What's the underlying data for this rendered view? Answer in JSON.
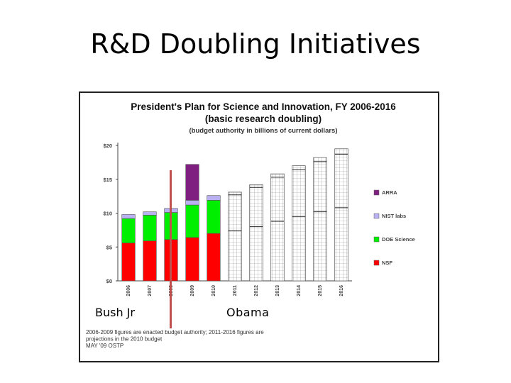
{
  "slide": {
    "title": "R&D Doubling Initiatives",
    "label_left": "Bush Jr",
    "label_right": "Obama"
  },
  "chart_data": {
    "type": "bar",
    "stacked": true,
    "title": "President's Plan for Science and Innovation, FY 2006-2016",
    "subtitle": "(basic research doubling)",
    "subtitle2": "(budget authority in billions of current dollars)",
    "xlabel": "",
    "ylabel": "",
    "categories": [
      "2006",
      "2007",
      "2008",
      "2009",
      "2010",
      "2011",
      "2012",
      "2013",
      "2014",
      "2015",
      "2016"
    ],
    "y_ticks": [
      "$0",
      "$5",
      "$10",
      "$15",
      "$20"
    ],
    "y_tick_values": [
      0,
      5,
      10,
      15,
      20
    ],
    "ylim": [
      0,
      20
    ],
    "grid": false,
    "legend_position": "right",
    "series": [
      {
        "name": "NSF",
        "color": "#ff0000",
        "values": [
          5.6,
          5.9,
          6.1,
          6.4,
          7.0,
          null,
          null,
          null,
          null,
          null,
          null
        ]
      },
      {
        "name": "DOE Science",
        "color": "#00ee00",
        "values": [
          3.6,
          3.8,
          4.0,
          4.8,
          4.9,
          null,
          null,
          null,
          null,
          null,
          null
        ]
      },
      {
        "name": "NIST labs",
        "color": "#b8b0f0",
        "values": [
          0.6,
          0.5,
          0.6,
          0.7,
          0.7,
          null,
          null,
          null,
          null,
          null,
          null
        ]
      },
      {
        "name": "ARRA",
        "color": "#7f1f7f",
        "values": [
          0,
          0,
          0,
          5.3,
          0,
          null,
          null,
          null,
          null,
          null,
          null
        ]
      }
    ],
    "projections": [
      {
        "category": "2011",
        "nsf": 7.4,
        "doe": 5.3,
        "nist": 0.4
      },
      {
        "category": "2012",
        "nsf": 8.0,
        "doe": 5.8,
        "nist": 0.4
      },
      {
        "category": "2013",
        "nsf": 8.8,
        "doe": 6.5,
        "nist": 0.5
      },
      {
        "category": "2014",
        "nsf": 9.5,
        "doe": 6.9,
        "nist": 0.6
      },
      {
        "category": "2015",
        "nsf": 10.2,
        "doe": 7.4,
        "nist": 0.6
      },
      {
        "category": "2016",
        "nsf": 10.8,
        "doe": 7.9,
        "nist": 0.8
      }
    ],
    "legend_entries": [
      "ARRA",
      "NIST labs",
      "DOE Science",
      "NSF"
    ],
    "footnote": [
      "2006-2009 figures are enacted budget authority; 2011-2016 figures are",
      "projections in the 2010 budget",
      "MAY '09 OSTP"
    ]
  }
}
